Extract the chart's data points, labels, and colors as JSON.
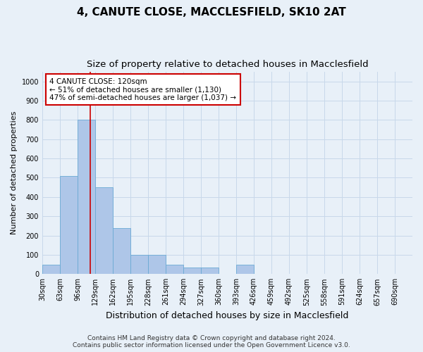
{
  "title": "4, CANUTE CLOSE, MACCLESFIELD, SK10 2AT",
  "subtitle": "Size of property relative to detached houses in Macclesfield",
  "xlabel": "Distribution of detached houses by size in Macclesfield",
  "ylabel": "Number of detached properties",
  "footer_line1": "Contains HM Land Registry data © Crown copyright and database right 2024.",
  "footer_line2": "Contains public sector information licensed under the Open Government Licence v3.0.",
  "bar_edges": [
    30,
    63,
    96,
    129,
    162,
    195,
    228,
    261,
    294,
    327,
    360,
    393,
    426,
    459,
    492,
    525,
    558,
    591,
    624,
    657,
    690
  ],
  "bar_heights": [
    50,
    510,
    800,
    450,
    240,
    100,
    100,
    50,
    35,
    35,
    0,
    50,
    0,
    0,
    0,
    0,
    0,
    0,
    0,
    0
  ],
  "bar_color": "#aec6e8",
  "bar_edge_color": "#6aaad4",
  "grid_color": "#c8d8ea",
  "vline_x": 120,
  "vline_color": "#cc0000",
  "annotation_box_text": "4 CANUTE CLOSE: 120sqm\n← 51% of detached houses are smaller (1,130)\n47% of semi-detached houses are larger (1,037) →",
  "annotation_box_color": "#cc0000",
  "annotation_box_fill": "#ffffff",
  "ylim": [
    0,
    1050
  ],
  "yticks": [
    0,
    100,
    200,
    300,
    400,
    500,
    600,
    700,
    800,
    900,
    1000
  ],
  "background_color": "#e8f0f8",
  "title_fontsize": 11,
  "subtitle_fontsize": 9.5,
  "xlabel_fontsize": 9,
  "ylabel_fontsize": 8,
  "tick_fontsize": 7,
  "annotation_fontsize": 7.5,
  "footer_fontsize": 6.5
}
